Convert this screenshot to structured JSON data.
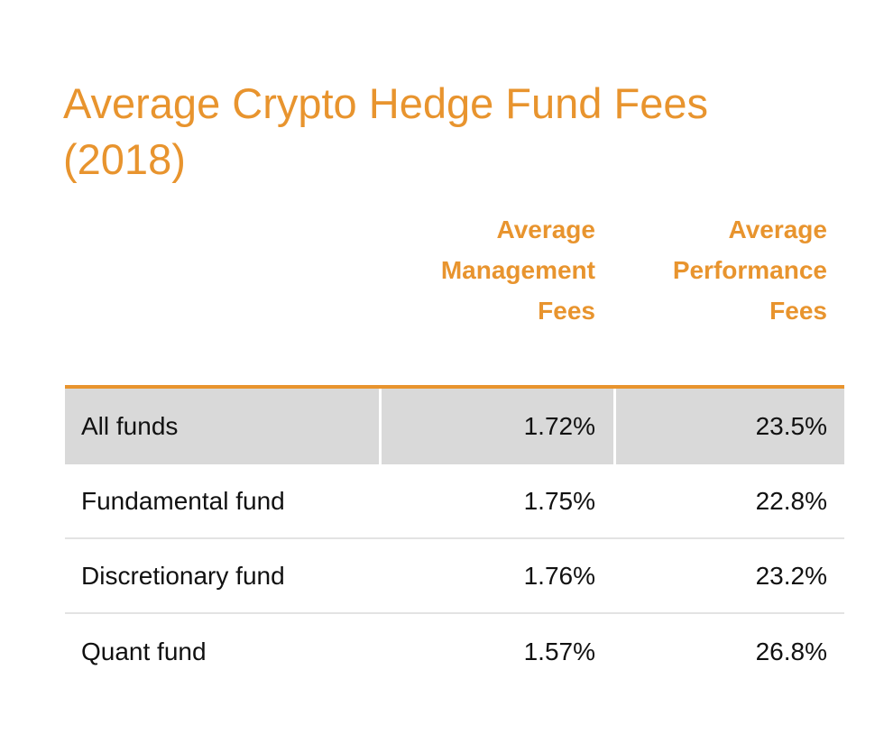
{
  "chart_data": {
    "type": "table",
    "title": "Average Crypto Hedge Fund Fees (2018)",
    "columns": [
      "",
      "Average Management Fees",
      "Average Performance Fees"
    ],
    "column_header_lines": {
      "management": [
        "Average",
        "Management",
        "Fees"
      ],
      "performance": [
        "Average",
        "Performance",
        "Fees"
      ]
    },
    "rows": [
      {
        "label": "All funds",
        "management_fee": "1.72%",
        "performance_fee": "23.5%",
        "highlighted": true
      },
      {
        "label": "Fundamental fund",
        "management_fee": "1.75%",
        "performance_fee": "22.8%"
      },
      {
        "label": "Discretionary fund",
        "management_fee": "1.76%",
        "performance_fee": "23.2%"
      },
      {
        "label": "Quant fund",
        "management_fee": "1.57%",
        "performance_fee": "26.8%"
      }
    ],
    "values": {
      "management_fee_percent": [
        1.72,
        1.75,
        1.76,
        1.57
      ],
      "performance_fee_percent": [
        23.5,
        22.8,
        23.2,
        26.8
      ]
    }
  },
  "colors": {
    "accent": "#E8942E",
    "highlight_row": "#D9D9D9",
    "row_divider": "#E3E3E3",
    "text": "#111111"
  }
}
